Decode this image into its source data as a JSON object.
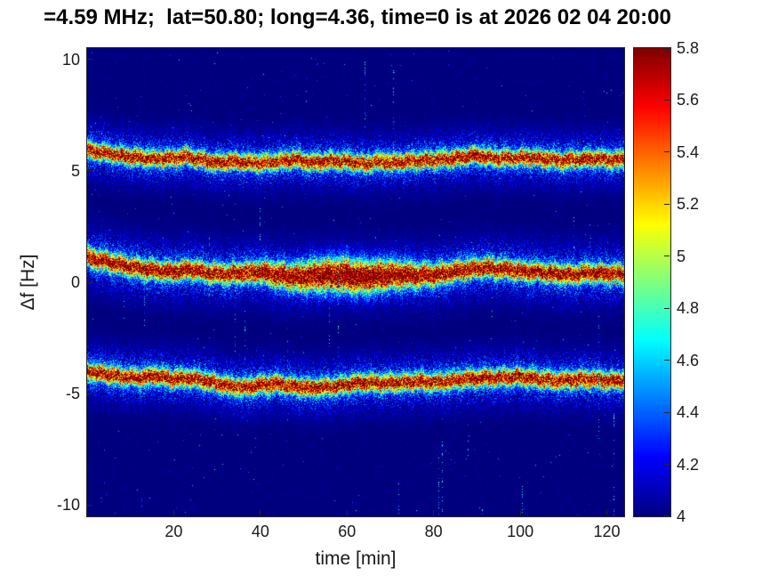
{
  "figure": {
    "background_color": "#ffffff",
    "axis_color": "#262626",
    "text_color": "#000000"
  },
  "chart_data": {
    "type": "heatmap",
    "title": "=4.59 MHz;  lat=50.80; long=4.36, time=0 is at 2026 02 04 20:00",
    "xlabel": "time [min]",
    "ylabel": "Δf [Hz]",
    "xlim": [
      0,
      124
    ],
    "ylim": [
      -10.5,
      10.5
    ],
    "x_ticks": [
      20,
      40,
      60,
      80,
      100,
      120
    ],
    "y_ticks": [
      10,
      5,
      0,
      -5,
      -10
    ],
    "grid": false,
    "legend": null,
    "colormap": "jet",
    "background_value": 4,
    "colorbar": {
      "position": "right",
      "min": 4,
      "max": 5.8,
      "ticks": [
        5.8,
        5.6,
        5.4,
        5.2,
        5,
        4.8,
        4.6,
        4.4,
        4.2,
        4
      ]
    },
    "bands": [
      {
        "name": "upper-doppler-trace",
        "approx_center_hz": 5.5,
        "core_sigma_hz": 0.24,
        "halo_sigma_hz": 0.75,
        "amp": 1.82,
        "bulge": null,
        "path": [
          [
            0,
            5.92
          ],
          [
            4,
            5.8
          ],
          [
            8,
            5.68
          ],
          [
            12,
            5.58
          ],
          [
            16,
            5.52
          ],
          [
            20,
            5.55
          ],
          [
            23,
            5.65
          ],
          [
            26,
            5.5
          ],
          [
            30,
            5.33
          ],
          [
            33,
            5.45
          ],
          [
            36,
            5.38
          ],
          [
            40,
            5.33
          ],
          [
            44,
            5.42
          ],
          [
            48,
            5.5
          ],
          [
            52,
            5.36
          ],
          [
            56,
            5.44
          ],
          [
            60,
            5.42
          ],
          [
            64,
            5.3
          ],
          [
            67,
            5.4
          ],
          [
            70,
            5.36
          ],
          [
            74,
            5.42
          ],
          [
            78,
            5.46
          ],
          [
            82,
            5.5
          ],
          [
            86,
            5.58
          ],
          [
            90,
            5.68
          ],
          [
            94,
            5.57
          ],
          [
            98,
            5.56
          ],
          [
            102,
            5.6
          ],
          [
            106,
            5.52
          ],
          [
            110,
            5.44
          ],
          [
            114,
            5.52
          ],
          [
            118,
            5.55
          ],
          [
            121,
            5.48
          ],
          [
            124,
            5.52
          ]
        ]
      },
      {
        "name": "center-doppler-trace",
        "approx_center_hz": 0.4,
        "core_sigma_hz": 0.27,
        "halo_sigma_hz": 0.85,
        "amp": 1.95,
        "bulge": {
          "t": 60,
          "span": 16,
          "sigma_scale": 1.7,
          "amp_scale": 1.1
        },
        "path": [
          [
            0,
            1.1
          ],
          [
            4,
            0.95
          ],
          [
            8,
            0.78
          ],
          [
            12,
            0.62
          ],
          [
            16,
            0.52
          ],
          [
            20,
            0.48
          ],
          [
            24,
            0.58
          ],
          [
            28,
            0.42
          ],
          [
            32,
            0.35
          ],
          [
            36,
            0.42
          ],
          [
            40,
            0.46
          ],
          [
            44,
            0.32
          ],
          [
            48,
            0.22
          ],
          [
            52,
            0.28
          ],
          [
            56,
            0.32
          ],
          [
            60,
            0.3
          ],
          [
            64,
            0.22
          ],
          [
            68,
            0.3
          ],
          [
            72,
            0.34
          ],
          [
            76,
            0.3
          ],
          [
            80,
            0.32
          ],
          [
            84,
            0.44
          ],
          [
            88,
            0.58
          ],
          [
            92,
            0.64
          ],
          [
            96,
            0.6
          ],
          [
            100,
            0.5
          ],
          [
            104,
            0.46
          ],
          [
            108,
            0.38
          ],
          [
            112,
            0.34
          ],
          [
            116,
            0.42
          ],
          [
            120,
            0.36
          ],
          [
            124,
            0.38
          ]
        ]
      },
      {
        "name": "lower-doppler-trace",
        "approx_center_hz": -4.4,
        "core_sigma_hz": 0.25,
        "halo_sigma_hz": 0.78,
        "amp": 1.85,
        "bulge": null,
        "path": [
          [
            0,
            -4.0
          ],
          [
            4,
            -4.1
          ],
          [
            8,
            -4.25
          ],
          [
            12,
            -4.3
          ],
          [
            16,
            -4.2
          ],
          [
            20,
            -4.35
          ],
          [
            24,
            -4.3
          ],
          [
            28,
            -4.45
          ],
          [
            32,
            -4.62
          ],
          [
            36,
            -4.75
          ],
          [
            40,
            -4.6
          ],
          [
            44,
            -4.55
          ],
          [
            48,
            -4.68
          ],
          [
            52,
            -4.75
          ],
          [
            56,
            -4.7
          ],
          [
            60,
            -4.6
          ],
          [
            64,
            -4.5
          ],
          [
            68,
            -4.55
          ],
          [
            72,
            -4.5
          ],
          [
            76,
            -4.45
          ],
          [
            80,
            -4.5
          ],
          [
            84,
            -4.42
          ],
          [
            88,
            -4.32
          ],
          [
            92,
            -4.3
          ],
          [
            96,
            -4.28
          ],
          [
            100,
            -4.25
          ],
          [
            104,
            -4.35
          ],
          [
            108,
            -4.42
          ],
          [
            112,
            -4.38
          ],
          [
            116,
            -4.35
          ],
          [
            120,
            -4.42
          ],
          [
            124,
            -4.4
          ]
        ]
      }
    ]
  }
}
